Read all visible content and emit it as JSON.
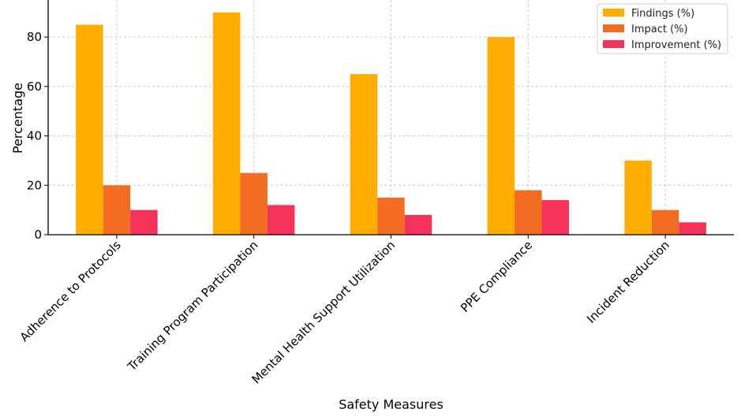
{
  "chart_data": {
    "type": "bar",
    "title": "",
    "xlabel": "Safety Measures",
    "ylabel": "Percentage",
    "categories": [
      "Adherence to Protocols",
      "Training Program Participation",
      "Mental Health Support Utilization",
      "PPE Compliance",
      "Incident Reduction"
    ],
    "series": [
      {
        "name": "Findings (%)",
        "color": "#ffad00",
        "values": [
          85,
          90,
          65,
          80,
          30
        ]
      },
      {
        "name": "Impact (%)",
        "color": "#f26c22",
        "values": [
          20,
          25,
          15,
          18,
          10
        ]
      },
      {
        "name": "Improvement (%)",
        "color": "#f5325a",
        "values": [
          10,
          12,
          8,
          14,
          5
        ]
      }
    ],
    "ylim": [
      0,
      95
    ],
    "yticks": [
      0,
      20,
      40,
      60,
      80
    ],
    "grid": true,
    "legend_position": "top-right"
  }
}
